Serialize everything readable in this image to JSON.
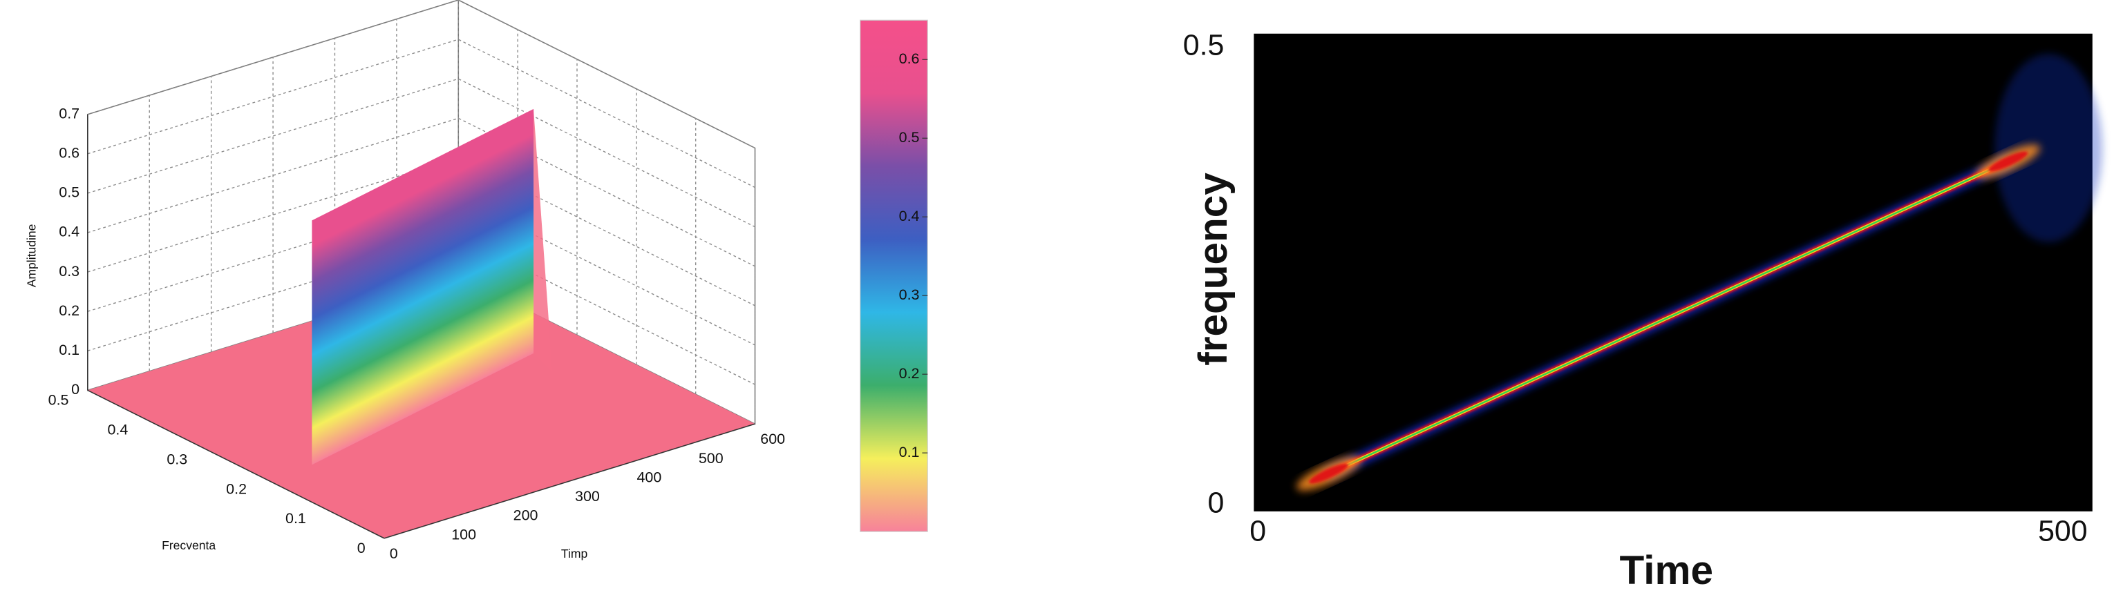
{
  "chart_data": [
    {
      "type": "surface3d",
      "xlabel": "Timp",
      "ylabel": "Frecventa",
      "zlabel": "Amplitudine",
      "xlim": [
        0,
        600
      ],
      "xticks": [
        0,
        100,
        200,
        300,
        400,
        500,
        600
      ],
      "ylim": [
        0,
        0.5
      ],
      "yticks": [
        0,
        0.1,
        0.2,
        0.3,
        0.4,
        0.5
      ],
      "zlim": [
        0,
        0.7
      ],
      "zticks": [
        0,
        0.1,
        0.2,
        0.3,
        0.4,
        0.5,
        0.6,
        0.7
      ],
      "grid": true,
      "floor_color": "#f46e88",
      "ridge": {
        "x": [
          75,
          520
        ],
        "y": [
          0.2,
          0.29
        ],
        "z": 0.62
      },
      "colorbar": {
        "clim": [
          0,
          0.65
        ],
        "ticks": [
          0.1,
          0.2,
          0.3,
          0.4,
          0.5,
          0.6
        ],
        "colors": [
          "#f7819a",
          "#f5ef5c",
          "#3cae6c",
          "#2fb7e6",
          "#3d5fc2",
          "#7a4fa8",
          "#e8508e",
          "#f4508a"
        ]
      }
    },
    {
      "type": "heatmap",
      "xlabel": "Time",
      "ylabel": "frequency",
      "xlim": [
        0,
        500
      ],
      "xticks": [
        0,
        500
      ],
      "ylim": [
        0,
        0.5
      ],
      "yticks": [
        0,
        0.5
      ],
      "background": "#000000",
      "x": [
        44,
        466
      ],
      "values": [
        0.034,
        0.375
      ]
    }
  ]
}
